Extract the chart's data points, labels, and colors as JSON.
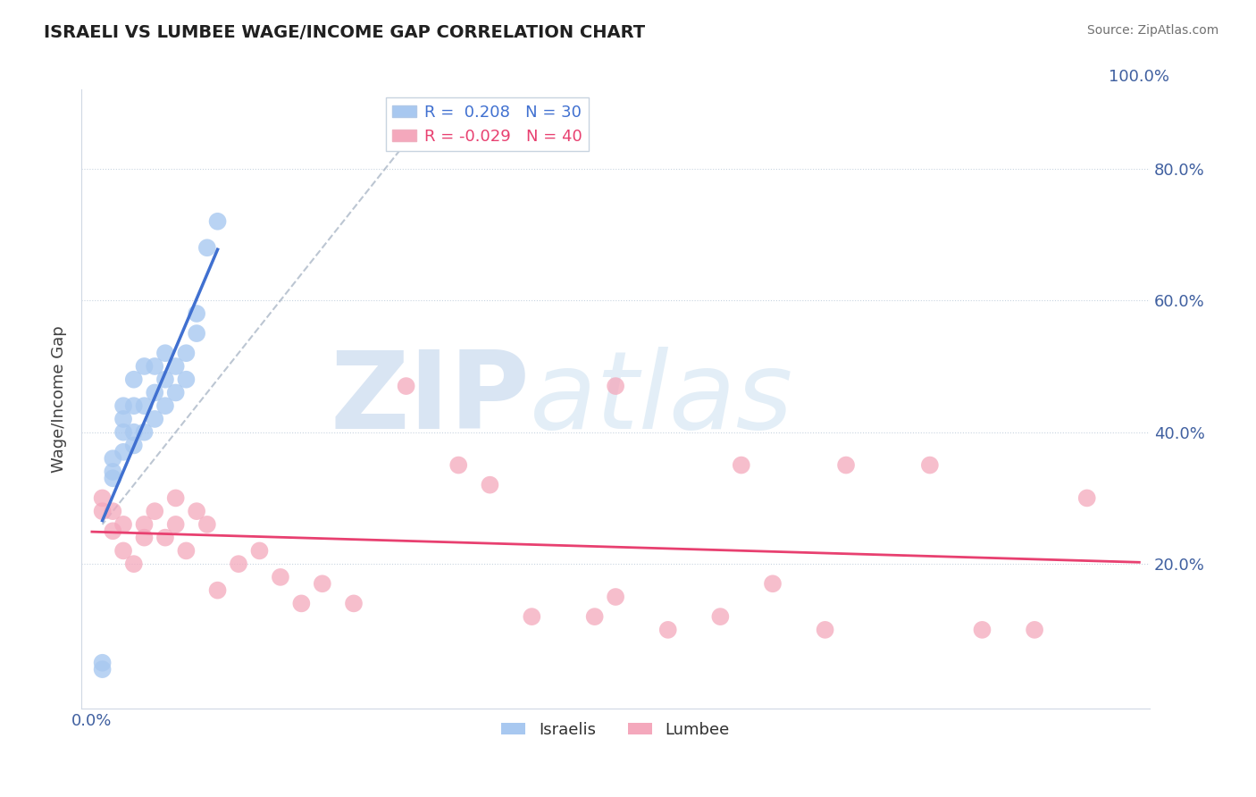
{
  "title": "ISRAELI VS LUMBEE WAGE/INCOME GAP CORRELATION CHART",
  "source": "Source: ZipAtlas.com",
  "ylabel": "Wage/Income Gap",
  "xlabel": "",
  "xlim": [
    -0.01,
    1.01
  ],
  "ylim": [
    -0.02,
    0.92
  ],
  "xticks": [
    0.0,
    0.2,
    0.4,
    0.6,
    0.8,
    1.0
  ],
  "xticklabels": [
    "0.0%",
    "",
    "",
    "",
    "",
    ""
  ],
  "ytick_positions": [
    0.2,
    0.4,
    0.6,
    0.8
  ],
  "yticklabels_right": [
    "20.0%",
    "40.0%",
    "60.0%",
    "80.0%"
  ],
  "israeli_R": 0.208,
  "israeli_N": 30,
  "lumbee_R": -0.029,
  "lumbee_N": 40,
  "israeli_color": "#a8c8f0",
  "lumbee_color": "#f4a8bc",
  "israeli_line_color": "#4070d0",
  "lumbee_line_color": "#e84070",
  "watermark_color": "#d0dff0",
  "israeli_x": [
    0.01,
    0.01,
    0.02,
    0.02,
    0.02,
    0.03,
    0.03,
    0.03,
    0.03,
    0.04,
    0.04,
    0.04,
    0.04,
    0.05,
    0.05,
    0.05,
    0.06,
    0.06,
    0.06,
    0.07,
    0.07,
    0.07,
    0.08,
    0.08,
    0.09,
    0.09,
    0.1,
    0.1,
    0.11,
    0.12
  ],
  "israeli_y": [
    0.05,
    0.04,
    0.33,
    0.34,
    0.36,
    0.37,
    0.4,
    0.42,
    0.44,
    0.38,
    0.4,
    0.44,
    0.48,
    0.4,
    0.44,
    0.5,
    0.42,
    0.46,
    0.5,
    0.44,
    0.48,
    0.52,
    0.46,
    0.5,
    0.48,
    0.52,
    0.55,
    0.58,
    0.68,
    0.72
  ],
  "lumbee_x": [
    0.01,
    0.01,
    0.02,
    0.02,
    0.03,
    0.03,
    0.04,
    0.05,
    0.05,
    0.06,
    0.07,
    0.08,
    0.08,
    0.09,
    0.1,
    0.11,
    0.12,
    0.14,
    0.16,
    0.18,
    0.2,
    0.22,
    0.3,
    0.35,
    0.42,
    0.5,
    0.55,
    0.6,
    0.62,
    0.65,
    0.7,
    0.72,
    0.8,
    0.85,
    0.9,
    0.95,
    0.5,
    0.48,
    0.38,
    0.25
  ],
  "lumbee_y": [
    0.28,
    0.3,
    0.25,
    0.28,
    0.22,
    0.26,
    0.2,
    0.24,
    0.26,
    0.28,
    0.24,
    0.26,
    0.3,
    0.22,
    0.28,
    0.26,
    0.16,
    0.2,
    0.22,
    0.18,
    0.14,
    0.17,
    0.47,
    0.35,
    0.12,
    0.47,
    0.1,
    0.12,
    0.35,
    0.17,
    0.1,
    0.35,
    0.35,
    0.1,
    0.1,
    0.3,
    0.15,
    0.12,
    0.32,
    0.14
  ],
  "dash_line_x": [
    0.3,
    0.01
  ],
  "dash_line_y": [
    0.84,
    0.26
  ]
}
